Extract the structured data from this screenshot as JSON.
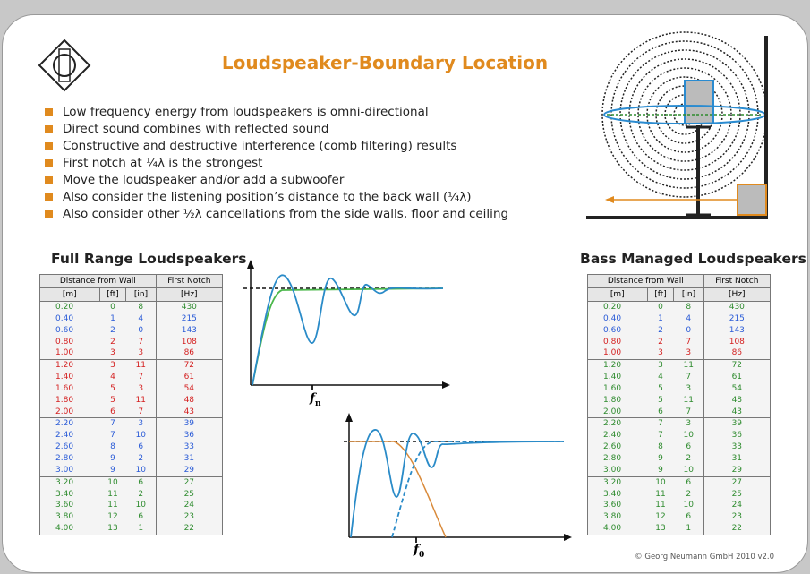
{
  "title": "Loudspeaker-Boundary Location",
  "bullets": [
    "Low frequency energy from loudspeakers is omni-directional",
    "Direct sound combines with reflected sound",
    "Constructive and destructive interference (comb filtering) results",
    "First notch at ¼λ is the strongest",
    "Move the loudspeaker and/or add a subwoofer",
    "Also consider the listening position’s distance to the back wall (¼λ)",
    "Also consider other ½λ cancellations from the side walls, floor and ceiling"
  ],
  "tables": [
    {
      "title": "Full Range Loudspeakers",
      "group_header": [
        "Distance from Wall",
        "First Notch"
      ],
      "units": [
        "[m]",
        "[ft]",
        "[in]",
        "[Hz]"
      ],
      "rows": [
        [
          "0.20",
          "0",
          "8",
          "430"
        ],
        [
          "0.40",
          "1",
          "4",
          "215"
        ],
        [
          "0.60",
          "2",
          "0",
          "143"
        ],
        [
          "0.80",
          "2",
          "7",
          "108"
        ],
        [
          "1.00",
          "3",
          "3",
          "86"
        ],
        [
          "1.20",
          "3",
          "11",
          "72"
        ],
        [
          "1.40",
          "4",
          "7",
          "61"
        ],
        [
          "1.60",
          "5",
          "3",
          "54"
        ],
        [
          "1.80",
          "5",
          "11",
          "48"
        ],
        [
          "2.00",
          "6",
          "7",
          "43"
        ],
        [
          "2.20",
          "7",
          "3",
          "39"
        ],
        [
          "2.40",
          "7",
          "10",
          "36"
        ],
        [
          "2.60",
          "8",
          "6",
          "33"
        ],
        [
          "2.80",
          "9",
          "2",
          "31"
        ],
        [
          "3.00",
          "9",
          "10",
          "29"
        ],
        [
          "3.20",
          "10",
          "6",
          "27"
        ],
        [
          "3.40",
          "11",
          "2",
          "25"
        ],
        [
          "3.60",
          "11",
          "10",
          "24"
        ],
        [
          "3.80",
          "12",
          "6",
          "23"
        ],
        [
          "4.00",
          "13",
          "1",
          "22"
        ]
      ],
      "row_colors": [
        "#2e8b2e",
        "#2a5bd7",
        "#2a5bd7",
        "#d42020",
        "#d42020",
        "#d42020",
        "#d42020",
        "#d42020",
        "#d42020",
        "#d42020",
        "#2a5bd7",
        "#2a5bd7",
        "#2a5bd7",
        "#2a5bd7",
        "#2a5bd7",
        "#2e8b2e",
        "#2e8b2e",
        "#2e8b2e",
        "#2e8b2e",
        "#2e8b2e"
      ]
    },
    {
      "title": "Bass Managed Loudspeakers",
      "group_header": [
        "Distance from Wall",
        "First Notch"
      ],
      "units": [
        "[m]",
        "[ft]",
        "[in]",
        "[Hz]"
      ],
      "rows": [
        [
          "0.20",
          "0",
          "8",
          "430"
        ],
        [
          "0.40",
          "1",
          "4",
          "215"
        ],
        [
          "0.60",
          "2",
          "0",
          "143"
        ],
        [
          "0.80",
          "2",
          "7",
          "108"
        ],
        [
          "1.00",
          "3",
          "3",
          "86"
        ],
        [
          "1.20",
          "3",
          "11",
          "72"
        ],
        [
          "1.40",
          "4",
          "7",
          "61"
        ],
        [
          "1.60",
          "5",
          "3",
          "54"
        ],
        [
          "1.80",
          "5",
          "11",
          "48"
        ],
        [
          "2.00",
          "6",
          "7",
          "43"
        ],
        [
          "2.20",
          "7",
          "3",
          "39"
        ],
        [
          "2.40",
          "7",
          "10",
          "36"
        ],
        [
          "2.60",
          "8",
          "6",
          "33"
        ],
        [
          "2.80",
          "9",
          "2",
          "31"
        ],
        [
          "3.00",
          "9",
          "10",
          "29"
        ],
        [
          "3.20",
          "10",
          "6",
          "27"
        ],
        [
          "3.40",
          "11",
          "2",
          "25"
        ],
        [
          "3.60",
          "11",
          "10",
          "24"
        ],
        [
          "3.80",
          "12",
          "6",
          "23"
        ],
        [
          "4.00",
          "13",
          "1",
          "22"
        ]
      ],
      "row_colors": [
        "#2e8b2e",
        "#2a5bd7",
        "#2a5bd7",
        "#d42020",
        "#d42020",
        "#2e8b2e",
        "#2e8b2e",
        "#2e8b2e",
        "#2e8b2e",
        "#2e8b2e",
        "#2e8b2e",
        "#2e8b2e",
        "#2e8b2e",
        "#2e8b2e",
        "#2e8b2e",
        "#2e8b2e",
        "#2e8b2e",
        "#2e8b2e",
        "#2e8b2e",
        "#2e8b2e"
      ]
    }
  ],
  "graph_labels": [
    {
      "symbol": "f",
      "subscript": "n"
    },
    {
      "symbol": "f",
      "subscript": "0"
    }
  ],
  "footer": "© Georg Neumann GmbH 2010 v2.0"
}
